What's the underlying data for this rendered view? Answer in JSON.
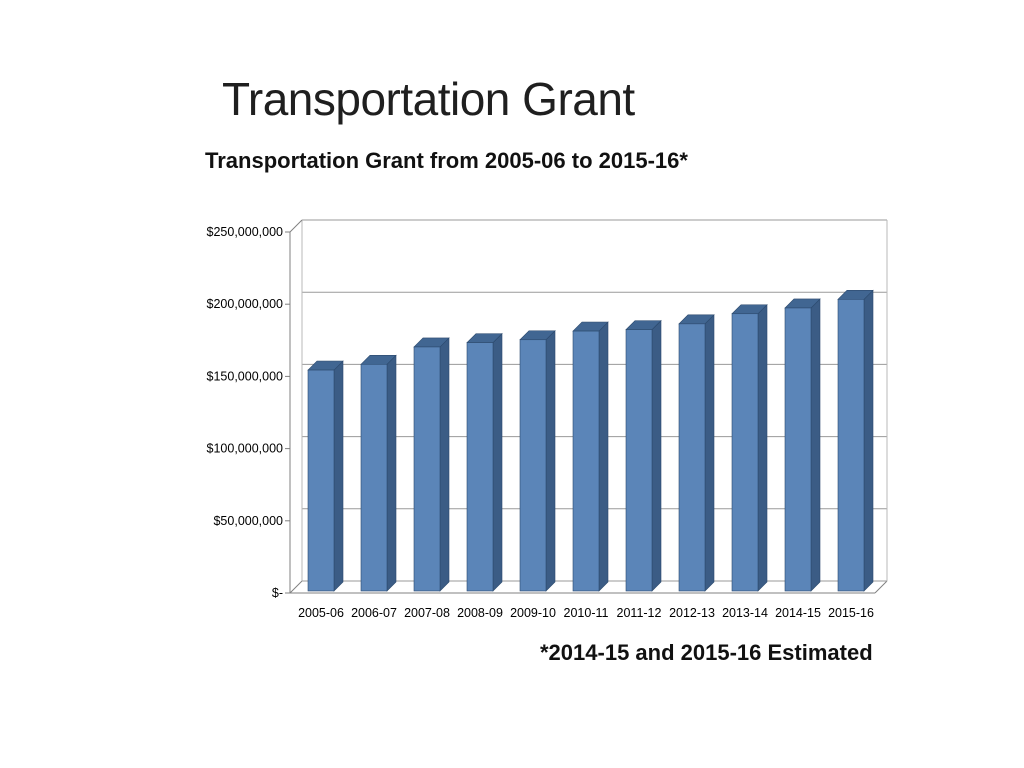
{
  "slide": {
    "title": "Transportation Grant",
    "footnote": "*2014-15 and 2015-16 Estimated"
  },
  "chart_data": {
    "type": "bar",
    "style": "3d-column",
    "title": "Transportation Grant from 2005-06 to 2015-16*",
    "categories": [
      "2005-06",
      "2006-07",
      "2007-08",
      "2008-09",
      "2009-10",
      "2010-11",
      "2011-12",
      "2012-13",
      "2013-14",
      "2014-15",
      "2015-16"
    ],
    "values": [
      153000000,
      157000000,
      169000000,
      172000000,
      174000000,
      180000000,
      181000000,
      185000000,
      192000000,
      196000000,
      202000000
    ],
    "xlabel": "",
    "ylabel": "",
    "ylim": [
      0,
      250000000
    ],
    "y_tick_interval": 50000000,
    "y_tick_labels": [
      "$-",
      "$50,000,000",
      "$100,000,000",
      "$150,000,000",
      "$200,000,000",
      "$250,000,000"
    ],
    "grid": true,
    "legend": "none",
    "colors": {
      "bar_front": "#5b85b8",
      "bar_side": "#3b5c85",
      "bar_top": "#416692",
      "bar_outline": "#2c4a6e",
      "gridline": "#9a9a9a",
      "axis": "#808080",
      "wall_edge": "#b8b8b8",
      "text": "#000000"
    }
  }
}
